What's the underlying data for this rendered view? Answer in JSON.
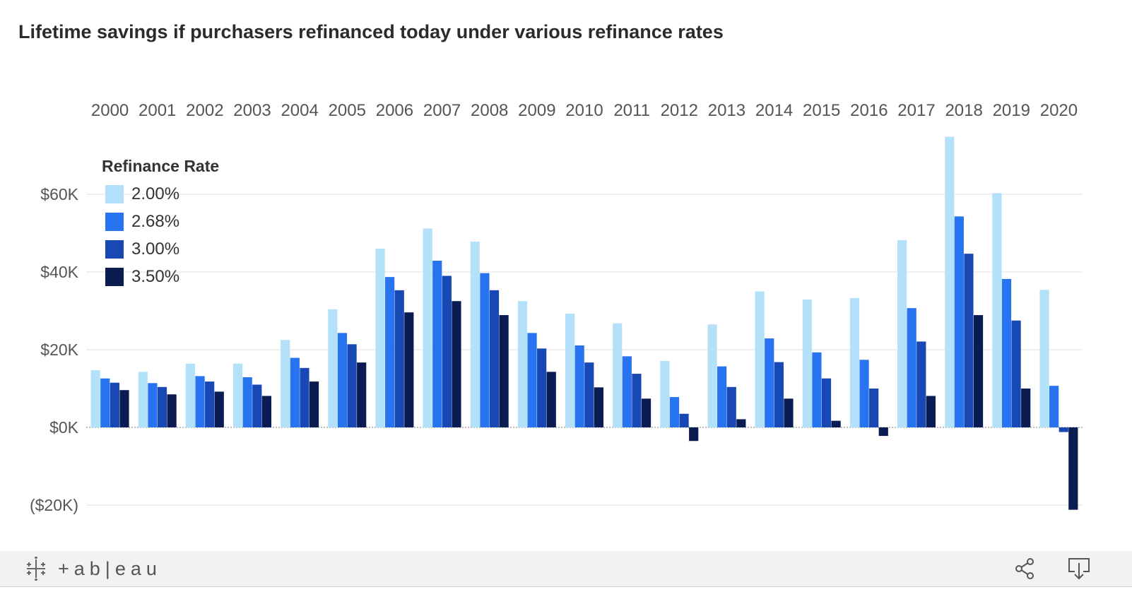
{
  "title": "Lifetime savings if purchasers refinanced today under various refinance rates",
  "footer": {
    "brand": "+ab|eau"
  },
  "colors": {
    "r200": "#b3e1fa",
    "r268": "#2874f0",
    "r300": "#1848b4",
    "r350": "#0b1c52",
    "grid": "#ebebeb",
    "zero": "#a8a8a8",
    "axis_text": "#555555"
  },
  "chart_data": {
    "type": "bar",
    "title": "Lifetime savings if purchasers refinanced today under various refinance rates",
    "legend_title": "Refinance Rate",
    "legend_position": "top-left",
    "categories": [
      "2000",
      "2001",
      "2002",
      "2003",
      "2004",
      "2005",
      "2006",
      "2007",
      "2008",
      "2009",
      "2010",
      "2011",
      "2012",
      "2013",
      "2014",
      "2015",
      "2016",
      "2017",
      "2018",
      "2019",
      "2020"
    ],
    "y_ticks": [
      60000,
      40000,
      20000,
      0,
      -20000
    ],
    "y_tick_labels": [
      "$60K",
      "$40K",
      "$20K",
      "$0K",
      "($20K)"
    ],
    "ylim": [
      -22000,
      76000
    ],
    "grid": true,
    "series": [
      {
        "name": "2.00%",
        "color": "#b3e1fa",
        "values": [
          14700,
          14300,
          16400,
          16400,
          22500,
          30400,
          46000,
          51200,
          47800,
          32500,
          29300,
          26800,
          17100,
          26500,
          35000,
          32900,
          33300,
          48200,
          74800,
          60300,
          35400
        ]
      },
      {
        "name": "2.68%",
        "color": "#2874f0",
        "values": [
          12600,
          11400,
          13200,
          12900,
          17900,
          24300,
          38700,
          42900,
          39700,
          24300,
          21100,
          18300,
          7800,
          15700,
          22900,
          19300,
          17400,
          30700,
          54300,
          38200,
          10700
        ]
      },
      {
        "name": "3.00%",
        "color": "#1848b4",
        "values": [
          11500,
          10400,
          11800,
          11000,
          15300,
          21400,
          35300,
          39000,
          35300,
          20300,
          16700,
          13800,
          3500,
          10400,
          16800,
          12600,
          10000,
          22100,
          44700,
          27500,
          -1200
        ]
      },
      {
        "name": "3.50%",
        "color": "#0b1c52",
        "values": [
          9600,
          8500,
          9200,
          8100,
          11800,
          16700,
          29600,
          32500,
          28900,
          14300,
          10300,
          7400,
          -3500,
          2100,
          7400,
          1700,
          -2200,
          8100,
          28900,
          10000,
          -21200
        ]
      }
    ]
  }
}
